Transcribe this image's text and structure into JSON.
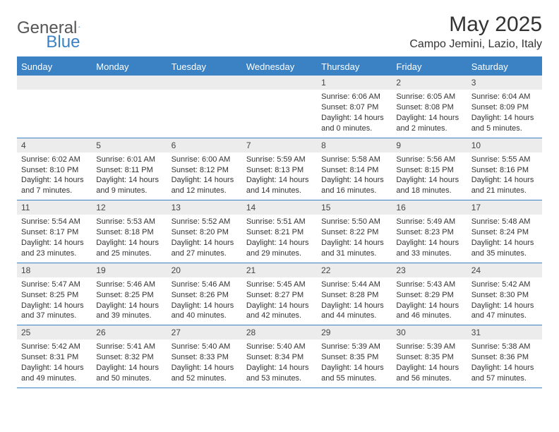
{
  "brand": {
    "part1": "General",
    "part2": "Blue"
  },
  "title": "May 2025",
  "location": "Campo Jemini, Lazio, Italy",
  "weekdays": [
    "Sunday",
    "Monday",
    "Tuesday",
    "Wednesday",
    "Thursday",
    "Friday",
    "Saturday"
  ],
  "colors": {
    "accent": "#3b82c4",
    "daynum_bg": "#ececec",
    "text": "#333333",
    "background": "#ffffff"
  },
  "layout": {
    "columns": 7,
    "rows": 5,
    "first_weekday_index": 4
  },
  "days": [
    {
      "n": 1,
      "sunrise": "6:06 AM",
      "sunset": "8:07 PM",
      "daylight_h": 14,
      "daylight_m": 0
    },
    {
      "n": 2,
      "sunrise": "6:05 AM",
      "sunset": "8:08 PM",
      "daylight_h": 14,
      "daylight_m": 2
    },
    {
      "n": 3,
      "sunrise": "6:04 AM",
      "sunset": "8:09 PM",
      "daylight_h": 14,
      "daylight_m": 5
    },
    {
      "n": 4,
      "sunrise": "6:02 AM",
      "sunset": "8:10 PM",
      "daylight_h": 14,
      "daylight_m": 7
    },
    {
      "n": 5,
      "sunrise": "6:01 AM",
      "sunset": "8:11 PM",
      "daylight_h": 14,
      "daylight_m": 9
    },
    {
      "n": 6,
      "sunrise": "6:00 AM",
      "sunset": "8:12 PM",
      "daylight_h": 14,
      "daylight_m": 12
    },
    {
      "n": 7,
      "sunrise": "5:59 AM",
      "sunset": "8:13 PM",
      "daylight_h": 14,
      "daylight_m": 14
    },
    {
      "n": 8,
      "sunrise": "5:58 AM",
      "sunset": "8:14 PM",
      "daylight_h": 14,
      "daylight_m": 16
    },
    {
      "n": 9,
      "sunrise": "5:56 AM",
      "sunset": "8:15 PM",
      "daylight_h": 14,
      "daylight_m": 18
    },
    {
      "n": 10,
      "sunrise": "5:55 AM",
      "sunset": "8:16 PM",
      "daylight_h": 14,
      "daylight_m": 21
    },
    {
      "n": 11,
      "sunrise": "5:54 AM",
      "sunset": "8:17 PM",
      "daylight_h": 14,
      "daylight_m": 23
    },
    {
      "n": 12,
      "sunrise": "5:53 AM",
      "sunset": "8:18 PM",
      "daylight_h": 14,
      "daylight_m": 25
    },
    {
      "n": 13,
      "sunrise": "5:52 AM",
      "sunset": "8:20 PM",
      "daylight_h": 14,
      "daylight_m": 27
    },
    {
      "n": 14,
      "sunrise": "5:51 AM",
      "sunset": "8:21 PM",
      "daylight_h": 14,
      "daylight_m": 29
    },
    {
      "n": 15,
      "sunrise": "5:50 AM",
      "sunset": "8:22 PM",
      "daylight_h": 14,
      "daylight_m": 31
    },
    {
      "n": 16,
      "sunrise": "5:49 AM",
      "sunset": "8:23 PM",
      "daylight_h": 14,
      "daylight_m": 33
    },
    {
      "n": 17,
      "sunrise": "5:48 AM",
      "sunset": "8:24 PM",
      "daylight_h": 14,
      "daylight_m": 35
    },
    {
      "n": 18,
      "sunrise": "5:47 AM",
      "sunset": "8:25 PM",
      "daylight_h": 14,
      "daylight_m": 37
    },
    {
      "n": 19,
      "sunrise": "5:46 AM",
      "sunset": "8:25 PM",
      "daylight_h": 14,
      "daylight_m": 39
    },
    {
      "n": 20,
      "sunrise": "5:46 AM",
      "sunset": "8:26 PM",
      "daylight_h": 14,
      "daylight_m": 40
    },
    {
      "n": 21,
      "sunrise": "5:45 AM",
      "sunset": "8:27 PM",
      "daylight_h": 14,
      "daylight_m": 42
    },
    {
      "n": 22,
      "sunrise": "5:44 AM",
      "sunset": "8:28 PM",
      "daylight_h": 14,
      "daylight_m": 44
    },
    {
      "n": 23,
      "sunrise": "5:43 AM",
      "sunset": "8:29 PM",
      "daylight_h": 14,
      "daylight_m": 46
    },
    {
      "n": 24,
      "sunrise": "5:42 AM",
      "sunset": "8:30 PM",
      "daylight_h": 14,
      "daylight_m": 47
    },
    {
      "n": 25,
      "sunrise": "5:42 AM",
      "sunset": "8:31 PM",
      "daylight_h": 14,
      "daylight_m": 49
    },
    {
      "n": 26,
      "sunrise": "5:41 AM",
      "sunset": "8:32 PM",
      "daylight_h": 14,
      "daylight_m": 50
    },
    {
      "n": 27,
      "sunrise": "5:40 AM",
      "sunset": "8:33 PM",
      "daylight_h": 14,
      "daylight_m": 52
    },
    {
      "n": 28,
      "sunrise": "5:40 AM",
      "sunset": "8:34 PM",
      "daylight_h": 14,
      "daylight_m": 53
    },
    {
      "n": 29,
      "sunrise": "5:39 AM",
      "sunset": "8:35 PM",
      "daylight_h": 14,
      "daylight_m": 55
    },
    {
      "n": 30,
      "sunrise": "5:39 AM",
      "sunset": "8:35 PM",
      "daylight_h": 14,
      "daylight_m": 56
    },
    {
      "n": 31,
      "sunrise": "5:38 AM",
      "sunset": "8:36 PM",
      "daylight_h": 14,
      "daylight_m": 57
    }
  ],
  "labels": {
    "sunrise": "Sunrise:",
    "sunset": "Sunset:",
    "daylight_prefix": "Daylight:",
    "hours_word": "hours",
    "and_word": "and",
    "minutes_word": "minutes."
  }
}
